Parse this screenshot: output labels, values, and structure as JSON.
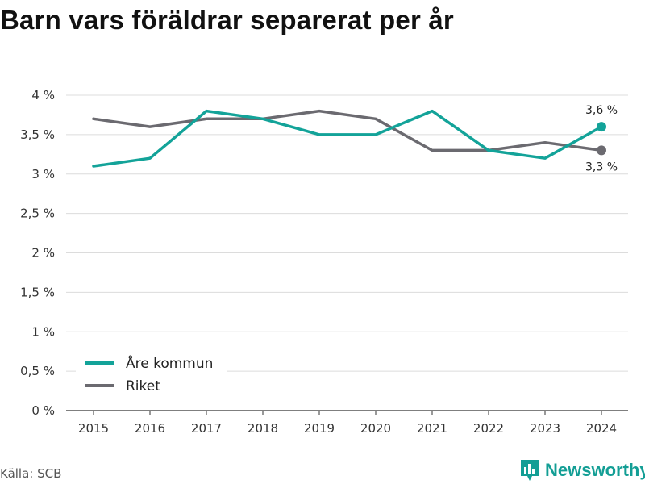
{
  "title": "Barn vars föräldrar separerat per år",
  "source": "Källa: SCB",
  "brand": "Newsworthy",
  "colors": {
    "series_1": "#13a399",
    "series_2": "#6b6a70",
    "brand": "#139e95"
  },
  "chart_data": {
    "type": "line",
    "x": [
      "2015",
      "2016",
      "2017",
      "2018",
      "2019",
      "2020",
      "2021",
      "2022",
      "2023",
      "2024"
    ],
    "series": [
      {
        "name": "Åre kommun",
        "values": [
          3.1,
          3.2,
          3.8,
          3.7,
          3.5,
          3.5,
          3.8,
          3.3,
          3.2,
          3.6
        ]
      },
      {
        "name": "Riket",
        "values": [
          3.7,
          3.6,
          3.7,
          3.7,
          3.8,
          3.7,
          3.3,
          3.3,
          3.4,
          3.3
        ]
      }
    ],
    "ylim": [
      0,
      4
    ],
    "yticks": [
      0,
      0.5,
      1,
      1.5,
      2,
      2.5,
      3,
      3.5,
      4
    ],
    "ytick_labels": [
      "0 %",
      "0,5 %",
      "1 %",
      "1,5 %",
      "2 %",
      "2,5 %",
      "3 %",
      "3,5 %",
      "4 %"
    ],
    "end_labels": [
      "3,6 %",
      "3,3 %"
    ],
    "grid": true,
    "legend": "bottom-left"
  }
}
